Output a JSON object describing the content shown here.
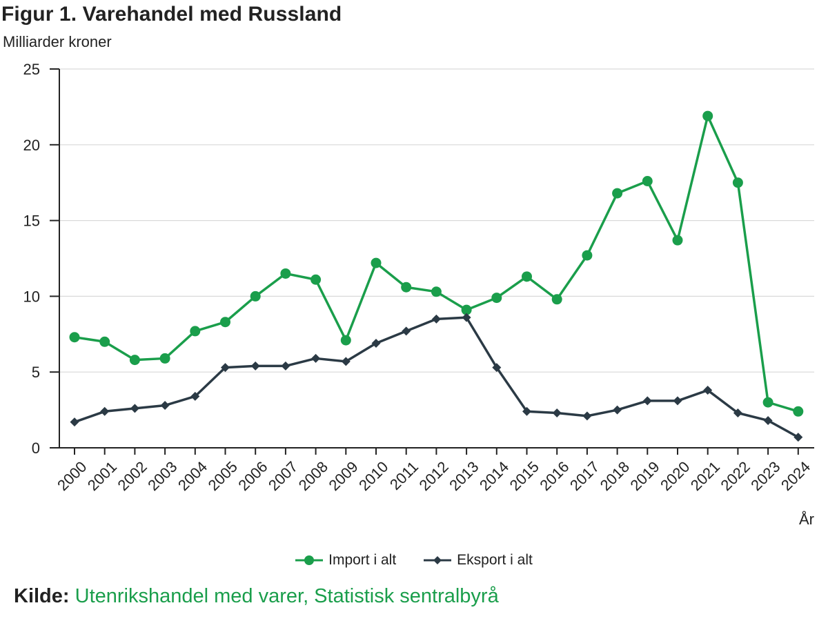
{
  "colors": {
    "import": "#1a9e4b",
    "export": "#2b3a45",
    "grid": "#d9d9d9",
    "axis": "#222222",
    "source_link": "#1a9e4b"
  },
  "source": {
    "label": "Kilde:",
    "text": "Utenrikshandel med varer, Statistisk sentralbyrå"
  },
  "chart_data": {
    "type": "line",
    "title": "Figur 1. Varehandel med Russland",
    "ylabel": "Milliarder kroner",
    "xlabel": "År",
    "ylim": [
      0,
      25
    ],
    "yticks": [
      "0",
      "5",
      "10",
      "15",
      "20",
      "25"
    ],
    "grid": true,
    "legend_position": "bottom",
    "categories": [
      "2000",
      "2001",
      "2002",
      "2003",
      "2004",
      "2005",
      "2006",
      "2007",
      "2008",
      "2009",
      "2010",
      "2011",
      "2012",
      "2013",
      "2014",
      "2015",
      "2016",
      "2017",
      "2018",
      "2019",
      "2020",
      "2021",
      "2022",
      "2023",
      "2024"
    ],
    "series": [
      {
        "name": "Import i alt",
        "marker": "circle",
        "color": "#1a9e4b",
        "values": [
          7.3,
          7.0,
          5.8,
          5.9,
          7.7,
          8.3,
          10.0,
          11.5,
          11.1,
          7.1,
          12.2,
          10.6,
          10.3,
          9.1,
          9.9,
          11.3,
          9.8,
          12.7,
          16.8,
          17.6,
          13.7,
          21.9,
          17.5,
          3.0,
          2.4
        ]
      },
      {
        "name": "Eksport i alt",
        "marker": "diamond",
        "color": "#2b3a45",
        "values": [
          1.7,
          2.4,
          2.6,
          2.8,
          3.4,
          5.3,
          5.4,
          5.4,
          5.9,
          5.7,
          6.9,
          7.7,
          8.5,
          8.6,
          5.3,
          2.4,
          2.3,
          2.1,
          2.5,
          3.1,
          3.1,
          3.8,
          2.3,
          1.8,
          0.7
        ]
      }
    ]
  }
}
